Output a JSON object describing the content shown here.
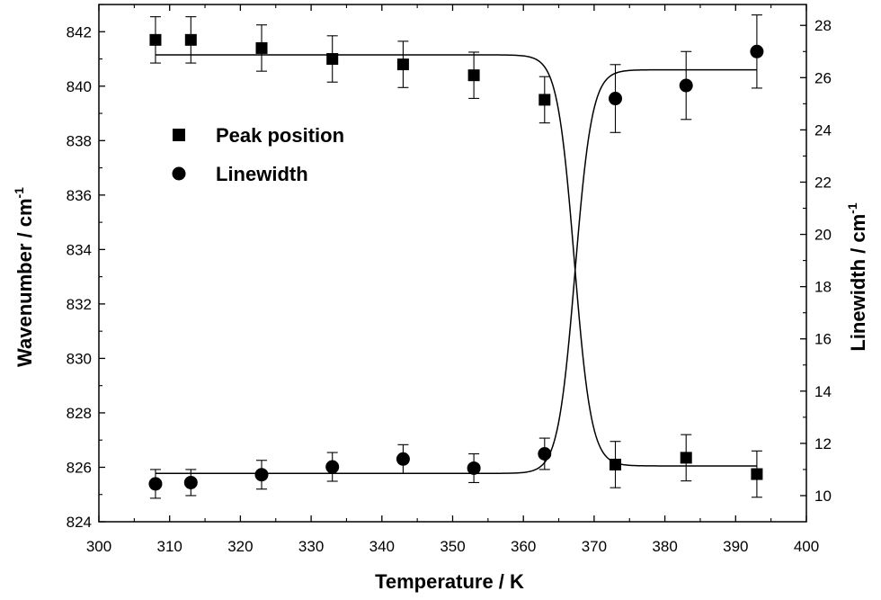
{
  "chart_data": {
    "type": "scatter",
    "xlabel": "Temperature / K",
    "ylabel_left": "Wavenumber / cm",
    "ylabel_left_sup": "-1",
    "ylabel_right": "Linewidth / cm",
    "ylabel_right_sup": "-1",
    "xlim": [
      300,
      400
    ],
    "ylim_left": [
      824,
      843
    ],
    "ylim_right": [
      9,
      28.8
    ],
    "xticks": [
      300,
      310,
      320,
      330,
      340,
      350,
      360,
      370,
      380,
      390,
      400
    ],
    "yticks_left": [
      824,
      826,
      828,
      830,
      832,
      834,
      836,
      838,
      840,
      842
    ],
    "yticks_right": [
      10,
      12,
      14,
      16,
      18,
      20,
      22,
      24,
      26,
      28
    ],
    "legend_position": "upper-left",
    "series": [
      {
        "name": "Peak position",
        "marker": "square",
        "axis": "left",
        "x": [
          308,
          313,
          323,
          333,
          343,
          353,
          363,
          373,
          383,
          393
        ],
        "y": [
          841.7,
          841.7,
          841.4,
          841.0,
          840.8,
          840.4,
          839.5,
          826.1,
          826.35,
          825.75
        ],
        "err": [
          0.85,
          0.85,
          0.85,
          0.85,
          0.85,
          0.85,
          0.85,
          0.85,
          0.85,
          0.85
        ]
      },
      {
        "name": "Linewidth",
        "marker": "circle",
        "axis": "right",
        "x": [
          308,
          313,
          323,
          333,
          343,
          353,
          363,
          373,
          383,
          393
        ],
        "y": [
          10.45,
          10.5,
          10.8,
          11.1,
          11.4,
          11.05,
          11.6,
          25.2,
          25.7,
          27.0
        ],
        "err": [
          0.55,
          0.5,
          0.55,
          0.55,
          0.55,
          0.55,
          0.6,
          1.3,
          1.3,
          1.4
        ]
      }
    ],
    "fit_curves": [
      {
        "axis": "left",
        "top": 841.15,
        "bottom": 826.05,
        "center": 367.2,
        "width": 1.2
      },
      {
        "axis": "right",
        "top": 26.3,
        "bottom": 10.85,
        "center": 367.3,
        "width": 1.2
      }
    ]
  }
}
